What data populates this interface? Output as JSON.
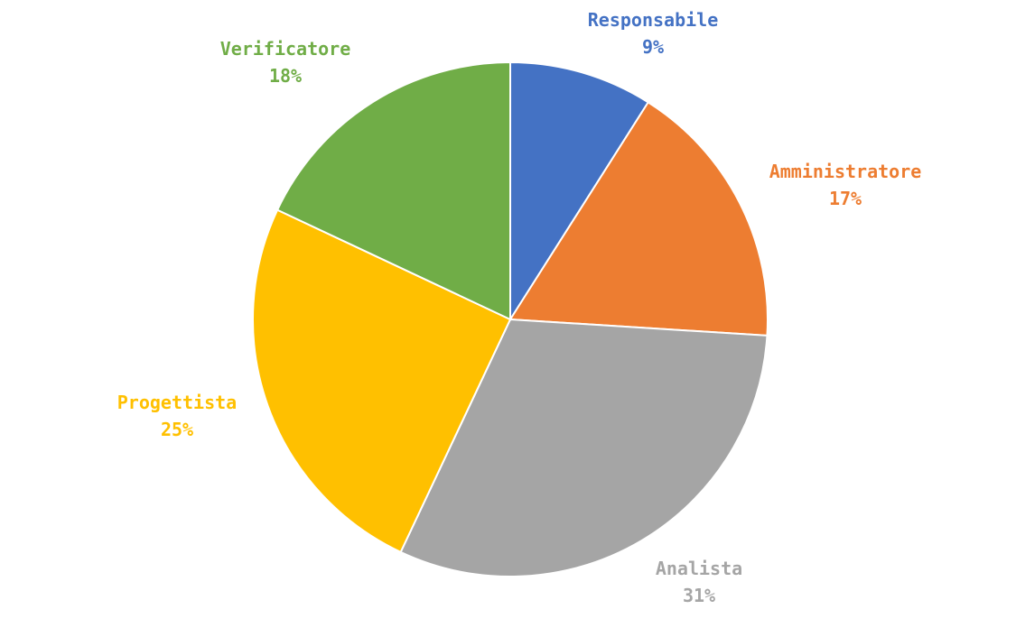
{
  "chart_data": {
    "type": "pie",
    "title": "",
    "start": "12 o'clock",
    "direction": "clockwise",
    "slices": [
      {
        "label": "Responsabile",
        "value": 9,
        "value_label": "9%",
        "color": "#4472C4"
      },
      {
        "label": "Amministratore",
        "value": 17,
        "value_label": "17%",
        "color": "#ED7D31"
      },
      {
        "label": "Analista",
        "value": 31,
        "value_label": "31%",
        "color": "#A5A5A5"
      },
      {
        "label": "Progettista",
        "value": 25,
        "value_label": "25%",
        "color": "#FFC000"
      },
      {
        "label": "Verificatore",
        "value": 18,
        "value_label": "18%",
        "color": "#70AD47"
      }
    ]
  }
}
